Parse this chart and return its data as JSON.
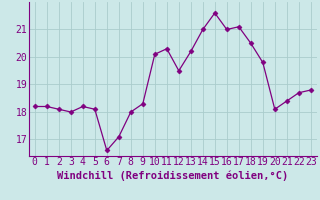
{
  "x": [
    0,
    1,
    2,
    3,
    4,
    5,
    6,
    7,
    8,
    9,
    10,
    11,
    12,
    13,
    14,
    15,
    16,
    17,
    18,
    19,
    20,
    21,
    22,
    23
  ],
  "y": [
    18.2,
    18.2,
    18.1,
    18.0,
    18.2,
    18.1,
    16.6,
    17.1,
    18.0,
    18.3,
    20.1,
    20.3,
    19.5,
    20.2,
    21.0,
    21.6,
    21.0,
    21.1,
    20.5,
    19.8,
    18.1,
    18.4,
    18.7,
    18.8
  ],
  "line_color": "#800080",
  "marker": "D",
  "marker_size": 2.5,
  "bg_color": "#cce8e8",
  "grid_color": "#aacccc",
  "xlabel": "Windchill (Refroidissement éolien,°C)",
  "xlabel_fontsize": 7.5,
  "tick_fontsize": 7,
  "ylim": [
    16.4,
    22.0
  ],
  "yticks": [
    17,
    18,
    19,
    20,
    21
  ],
  "xticks": [
    0,
    1,
    2,
    3,
    4,
    5,
    6,
    7,
    8,
    9,
    10,
    11,
    12,
    13,
    14,
    15,
    16,
    17,
    18,
    19,
    20,
    21,
    22,
    23
  ]
}
